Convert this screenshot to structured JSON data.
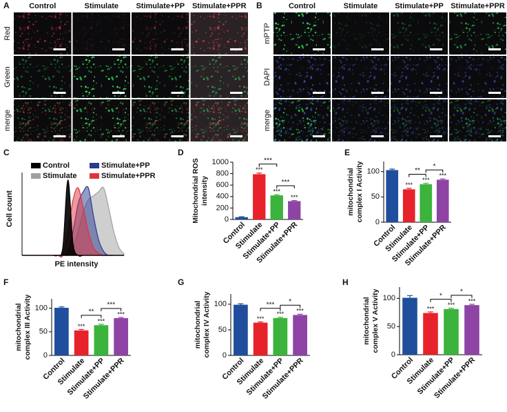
{
  "image_panels": [
    {
      "label": "A",
      "columns": [
        "Control",
        "Stimulate",
        "Stimulate+PP",
        "Stimulate+PPR"
      ],
      "rows": [
        "Red",
        "Green",
        "merge"
      ]
    },
    {
      "label": "B",
      "columns": [
        "Control",
        "Stimulate",
        "Stimulate+PP",
        "Stimulate+PPR"
      ],
      "rows": [
        "mPTP",
        "DAPI",
        "merge"
      ]
    }
  ],
  "chart_data": [
    {
      "label": "C",
      "type": "density",
      "xlabel": "PE intensity",
      "ylabel": "Cell count",
      "x": [
        0,
        1,
        2,
        3,
        4,
        5,
        6,
        7,
        8,
        9,
        10,
        11,
        12,
        13,
        14,
        15,
        16,
        17,
        18,
        19,
        20
      ],
      "xlim": [
        0,
        20
      ],
      "ylim": [
        0,
        1
      ],
      "series": [
        {
          "name": "Control",
          "color": "#000000",
          "values": [
            0,
            0,
            0,
            0,
            0,
            0,
            0,
            0,
            0.1,
            0.95,
            0.15,
            0,
            0,
            0,
            0,
            0,
            0,
            0,
            0,
            0,
            0
          ]
        },
        {
          "name": "Stimulate",
          "color": "#a0a0a0",
          "values": [
            0,
            0,
            0,
            0,
            0,
            0,
            0,
            0,
            0,
            0.02,
            0.1,
            0.3,
            0.55,
            0.7,
            0.75,
            0.8,
            0.85,
            0.6,
            0.3,
            0.1,
            0.02
          ]
        },
        {
          "name": "Stimulate+PP",
          "color": "#2b3990",
          "values": [
            0,
            0,
            0,
            0,
            0,
            0,
            0,
            0,
            0,
            0.05,
            0.3,
            0.65,
            0.8,
            0.85,
            0.5,
            0.2,
            0.05,
            0,
            0,
            0,
            0
          ]
        },
        {
          "name": "Stimulate+PPR",
          "color": "#e0323c",
          "values": [
            0,
            0,
            0,
            0,
            0,
            0,
            0,
            0,
            0,
            0.3,
            0.7,
            0.85,
            0.6,
            0.3,
            0.1,
            0.03,
            0,
            0,
            0,
            0,
            0
          ]
        }
      ]
    },
    {
      "label": "D",
      "type": "bar",
      "ylabel": [
        "Mitochondrial ROS",
        "intensity"
      ],
      "categories": [
        "Control",
        "Stimulate",
        "Stimulate+PP",
        "Stimulate+PPR"
      ],
      "values": [
        40,
        790,
        420,
        320
      ],
      "errors": [
        8,
        20,
        12,
        10
      ],
      "colors": [
        "#1f4e9c",
        "#e8222a",
        "#3cb33c",
        "#8e44a5"
      ],
      "stars": [
        null,
        "***",
        "***",
        "***"
      ],
      "brackets": [
        {
          "from": 1,
          "to": 2,
          "label": "***"
        },
        {
          "from": 2,
          "to": 3,
          "label": "***"
        }
      ],
      "ylim": [
        0,
        1000
      ],
      "yticks": [
        0,
        200,
        400,
        600,
        800,
        1000
      ]
    },
    {
      "label": "E",
      "type": "bar",
      "ylabel": [
        "mitochondrial",
        "complex I Activity"
      ],
      "categories": [
        "Control",
        "Stimulate",
        "Stimulate+PP",
        "Stimulate+PPR"
      ],
      "values": [
        103,
        65,
        75,
        84
      ],
      "errors": [
        2,
        2,
        2,
        1.5
      ],
      "colors": [
        "#1f4e9c",
        "#e8222a",
        "#3cb33c",
        "#8e44a5"
      ],
      "stars": [
        null,
        "***",
        "***",
        "***"
      ],
      "brackets": [
        {
          "from": 1,
          "to": 2,
          "label": "**"
        },
        {
          "from": 2,
          "to": 3,
          "label": "*"
        }
      ],
      "ylim": [
        0,
        120
      ],
      "yticks": [
        0,
        50,
        100
      ]
    },
    {
      "label": "F",
      "type": "bar",
      "ylabel": [
        "mitochondrial",
        "complex III Activity"
      ],
      "categories": [
        "Control",
        "Stimulate",
        "Stimulate+PP",
        "Stimulate+PPR"
      ],
      "values": [
        101,
        53,
        64,
        79
      ],
      "errors": [
        2,
        2,
        2,
        1.5
      ],
      "colors": [
        "#1f4e9c",
        "#e8222a",
        "#3cb33c",
        "#8e44a5"
      ],
      "stars": [
        null,
        "***",
        "***",
        "***"
      ],
      "brackets": [
        {
          "from": 1,
          "to": 2,
          "label": "**"
        },
        {
          "from": 2,
          "to": 3,
          "label": "***"
        }
      ],
      "ylim": [
        0,
        120
      ],
      "yticks": [
        0,
        50,
        100
      ]
    },
    {
      "label": "G",
      "type": "bar",
      "ylabel": [
        "mitochondrial",
        "complex IV Activity"
      ],
      "categories": [
        "Control",
        "Stimulate",
        "Stimulate+PP",
        "Stimulate+PPR"
      ],
      "values": [
        99,
        64,
        73,
        79
      ],
      "errors": [
        2,
        1.5,
        1.5,
        1.5
      ],
      "colors": [
        "#1f4e9c",
        "#e8222a",
        "#3cb33c",
        "#8e44a5"
      ],
      "stars": [
        null,
        "***",
        "***",
        "***"
      ],
      "brackets": [
        {
          "from": 1,
          "to": 2,
          "label": "***"
        },
        {
          "from": 2,
          "to": 3,
          "label": "*"
        }
      ],
      "ylim": [
        0,
        120
      ],
      "yticks": [
        0,
        50,
        100
      ]
    },
    {
      "label": "H",
      "type": "bar",
      "ylabel": [
        "mitochondrial",
        "complex V Activity"
      ],
      "categories": [
        "Control",
        "Stimulate",
        "Stimulate+PP",
        "Stimulate+PPR"
      ],
      "values": [
        101,
        74,
        81,
        88
      ],
      "errors": [
        4,
        2,
        1.5,
        1.5
      ],
      "colors": [
        "#1f4e9c",
        "#e8222a",
        "#3cb33c",
        "#8e44a5"
      ],
      "stars": [
        null,
        "***",
        "***",
        "***"
      ],
      "brackets": [
        {
          "from": 1,
          "to": 2,
          "label": "*"
        },
        {
          "from": 2,
          "to": 3,
          "label": "*"
        }
      ],
      "ylim": [
        0,
        120
      ],
      "yticks": [
        0,
        50,
        100
      ]
    }
  ]
}
